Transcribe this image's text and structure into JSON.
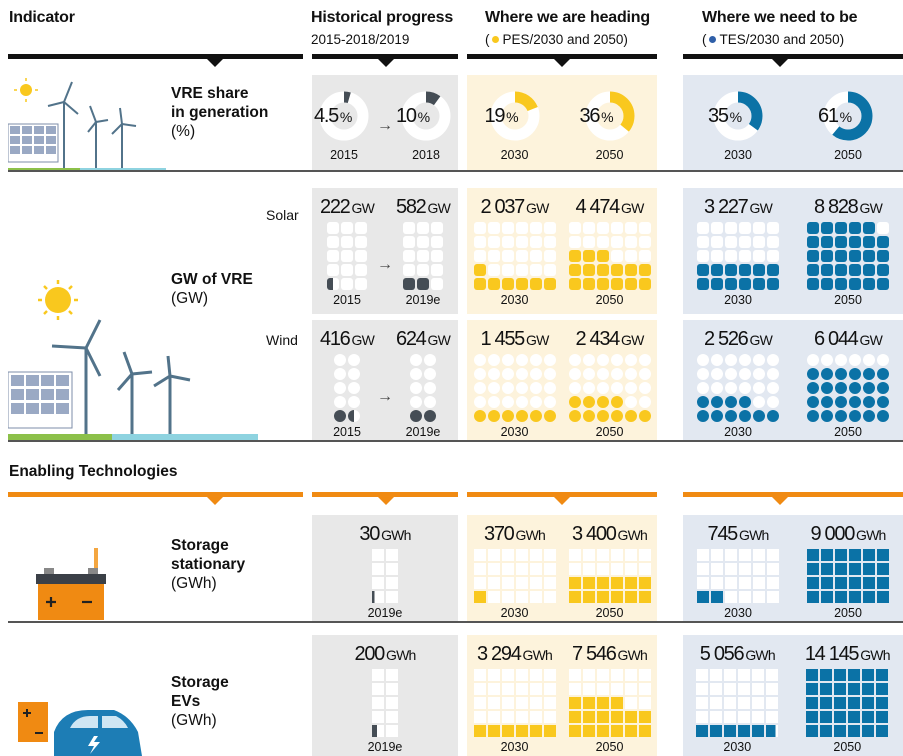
{
  "header": {
    "indicator": "Indicator",
    "historical_title": "Historical progress",
    "historical_sub": "2015-2018/2019",
    "heading_title": "Where we are heading",
    "heading_sub_open": "(",
    "heading_sub": "PES/2030 and 2050)",
    "need_title": "Where we need to be",
    "need_sub_open": "(",
    "need_sub": "TES/2030 and 2050)"
  },
  "enabling_title": "Enabling Technologies",
  "colors": {
    "historical": "#454d55",
    "pes": "#f9c81e",
    "tes": "#0b72a6",
    "historical_bg": "#e8e8e8",
    "pes_bg": "#fdf3dc",
    "tes_bg": "#e2e8f1",
    "orange": "#f08a12"
  },
  "labels": {
    "vre_share": {
      "l1": "VRE share",
      "l2": "in generation",
      "unit": "(%)"
    },
    "gw_vre": {
      "l1": "GW of VRE",
      "unit": "(GW)"
    },
    "solar": "Solar",
    "wind": "Wind",
    "stationary": {
      "l1": "Storage",
      "l2": "stationary",
      "unit": "(GWh)"
    },
    "evs": {
      "l1": "Storage",
      "l2": "EVs",
      "unit": "(GWh)"
    }
  },
  "blocks": {
    "vre": {
      "historical": [
        {
          "value": "4.5",
          "unit": "%",
          "year": "2015",
          "percent": 4.5
        },
        {
          "value": "10",
          "unit": "%",
          "year": "2018",
          "percent": 10
        }
      ],
      "pes": [
        {
          "value": "19",
          "unit": "%",
          "year": "2030",
          "percent": 19
        },
        {
          "value": "36",
          "unit": "%",
          "year": "2050",
          "percent": 36
        }
      ],
      "tes": [
        {
          "value": "35",
          "unit": "%",
          "year": "2030",
          "percent": 35
        },
        {
          "value": "61",
          "unit": "%",
          "year": "2050",
          "percent": 61
        }
      ]
    },
    "solar": {
      "historical": [
        {
          "value": "222",
          "unit": "GW",
          "year": "2015",
          "cols": 3,
          "rows": 5,
          "filled": 0.5
        },
        {
          "value": "582",
          "unit": "GW",
          "year": "2019e",
          "cols": 3,
          "rows": 5,
          "filled": 2
        }
      ],
      "pes": [
        {
          "value": "2 037",
          "unit": "GW",
          "year": "2030",
          "cols": 6,
          "rows": 5,
          "filled": 7
        },
        {
          "value": "4 474",
          "unit": "GW",
          "year": "2050",
          "cols": 6,
          "rows": 5,
          "filled": 15
        }
      ],
      "tes": [
        {
          "value": "3 227",
          "unit": "GW",
          "year": "2030",
          "cols": 6,
          "rows": 5,
          "filled": 12
        },
        {
          "value": "8 828",
          "unit": "GW",
          "year": "2050",
          "cols": 6,
          "rows": 5,
          "filled": 29
        }
      ]
    },
    "wind": {
      "historical": [
        {
          "value": "416",
          "unit": "GW",
          "year": "2015",
          "cols": 2,
          "rows": 5,
          "filled": 1.5
        },
        {
          "value": "624",
          "unit": "GW",
          "year": "2019e",
          "cols": 2,
          "rows": 5,
          "filled": 2
        }
      ],
      "pes": [
        {
          "value": "1 455",
          "unit": "GW",
          "year": "2030",
          "cols": 6,
          "rows": 5,
          "filled": 6
        },
        {
          "value": "2 434",
          "unit": "GW",
          "year": "2050",
          "cols": 6,
          "rows": 5,
          "filled": 10
        }
      ],
      "tes": [
        {
          "value": "2 526",
          "unit": "GW",
          "year": "2030",
          "cols": 6,
          "rows": 5,
          "filled": 10
        },
        {
          "value": "6 044",
          "unit": "GW",
          "year": "2050",
          "cols": 6,
          "rows": 5,
          "filled": 24
        }
      ]
    },
    "stationary": {
      "historical": [
        {
          "value": "30",
          "unit": "GWh",
          "year": "2019e",
          "cols": 2,
          "rows": 4,
          "filled": 0.2
        }
      ],
      "pes": [
        {
          "value": "370",
          "unit": "GWh",
          "year": "2030",
          "cols": 6,
          "rows": 4,
          "filled": 1
        },
        {
          "value": "3 400",
          "unit": "GWh",
          "year": "2050",
          "cols": 6,
          "rows": 4,
          "filled": 12
        }
      ],
      "tes": [
        {
          "value": "745",
          "unit": "GWh",
          "year": "2030",
          "cols": 6,
          "rows": 4,
          "filled": 2
        },
        {
          "value": "9 000",
          "unit": "GWh",
          "year": "2050",
          "cols": 6,
          "rows": 4,
          "filled": 24
        }
      ]
    },
    "evs": {
      "historical": [
        {
          "value": "200",
          "unit": "GWh",
          "year": "2019e",
          "cols": 2,
          "rows": 5,
          "filled": 0.4
        }
      ],
      "pes": [
        {
          "value": "3 294",
          "unit": "GWh",
          "year": "2030",
          "cols": 6,
          "rows": 5,
          "filled": 6
        },
        {
          "value": "7 546",
          "unit": "GWh",
          "year": "2050",
          "cols": 6,
          "rows": 5,
          "filled": 16
        }
      ],
      "tes": [
        {
          "value": "5 056",
          "unit": "GWh",
          "year": "2030",
          "cols": 6,
          "rows": 5,
          "filled": 5.8
        },
        {
          "value": "14 145",
          "unit": "GWh",
          "year": "2050",
          "cols": 6,
          "rows": 5,
          "filled": 30
        }
      ]
    }
  },
  "arrow_glyph": "→"
}
